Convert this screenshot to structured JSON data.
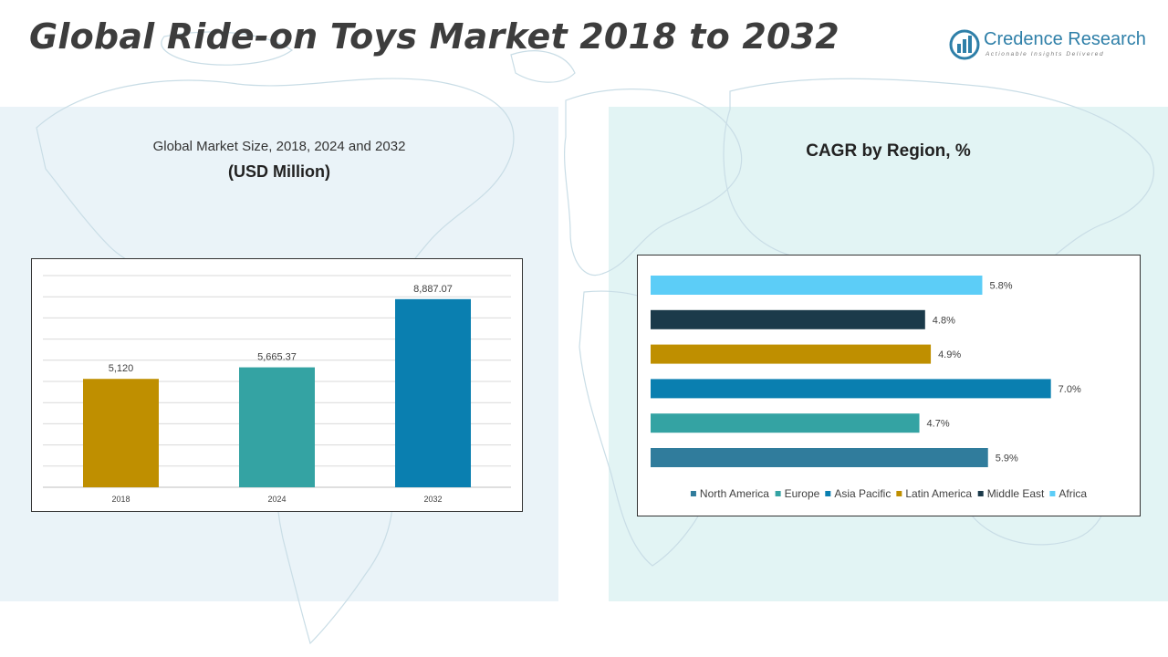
{
  "page": {
    "title": "Global Ride-on Toys Market 2018 to 2032"
  },
  "logo": {
    "name": "Credence Research",
    "tagline": "Actionable Insights Delivered"
  },
  "colors": {
    "left_panel": "#eaf3f8",
    "right_panel": "#e2f4f4",
    "brand": "#2e7fa8"
  },
  "left_panel": {
    "title": "Global Market Size, 2018, 2024 and 2032",
    "subtitle": "(USD Million)"
  },
  "right_panel": {
    "title": "CAGR by Region, %"
  },
  "chart_data": [
    {
      "type": "bar",
      "title": "Global Market Size, 2018, 2024 and 2032",
      "ylabel": "(USD Million)",
      "categories": [
        "2018",
        "2024",
        "2032"
      ],
      "values": [
        5120,
        5665.37,
        8887.07
      ],
      "value_labels": [
        "5,120",
        "5,665.37",
        "8,887.07"
      ],
      "colors": [
        "#bf8f00",
        "#34a3a3",
        "#0a7fb0"
      ],
      "ylim": [
        0,
        10000
      ],
      "grid": true,
      "legend": "none"
    },
    {
      "type": "bar",
      "orientation": "horizontal",
      "title": "CAGR by Region, %",
      "categories": [
        "Africa",
        "Middle East",
        "Latin America",
        "Asia Pacific",
        "Europe",
        "North America"
      ],
      "values": [
        5.8,
        4.8,
        4.9,
        7.0,
        4.7,
        5.9
      ],
      "value_labels": [
        "5.8%",
        "4.8%",
        "4.9%",
        "7.0%",
        "4.7%",
        "5.9%"
      ],
      "colors": [
        "#5ccdf7",
        "#1b3a4a",
        "#bf8f00",
        "#0a7fb0",
        "#34a3a3",
        "#307c9c"
      ],
      "xlim": [
        0,
        7.5
      ],
      "grid": false,
      "legend_position": "bottom",
      "legend": [
        "North America",
        "Europe",
        "Asia Pacific",
        "Latin America",
        "Middle East",
        "Africa"
      ],
      "legend_colors": [
        "#307c9c",
        "#34a3a3",
        "#0a7fb0",
        "#bf8f00",
        "#1b3a4a",
        "#5ccdf7"
      ]
    }
  ]
}
